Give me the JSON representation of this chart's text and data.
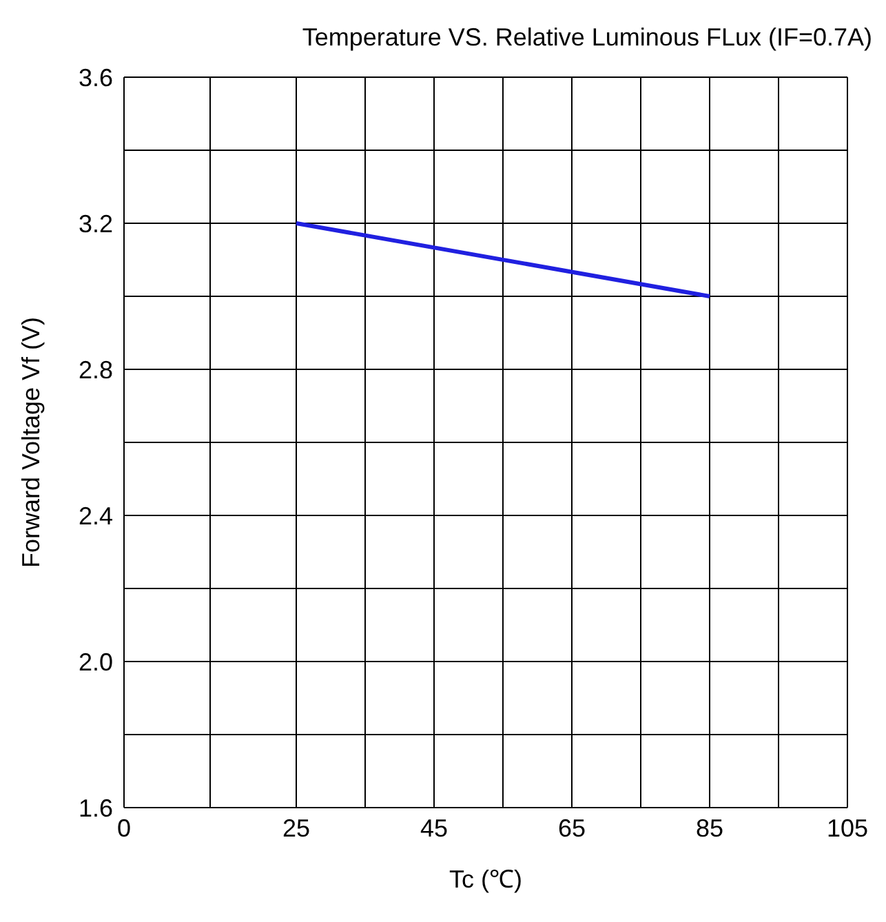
{
  "chart_data": {
    "type": "line",
    "title": "Temperature VS.  Relative Luminous FLux (IF=0.7A)",
    "xlabel": "Tc (℃)",
    "ylabel": "Forward  Voltage  Vf  (V)",
    "x": [
      25,
      85
    ],
    "series": [
      {
        "color": "#2020e0",
        "values": [
          3.2,
          3.0
        ]
      }
    ],
    "xlim": [
      0,
      105
    ],
    "xticks": [
      0,
      {
        "value": 12.5,
        "label": null
      },
      25,
      {
        "value": 35,
        "label": null
      },
      45,
      {
        "value": 55,
        "label": null
      },
      65,
      {
        "value": 75,
        "label": null
      },
      85,
      {
        "value": 95,
        "label": null
      },
      105
    ],
    "ylim": [
      1.6,
      3.6
    ],
    "yticks": [
      1.6,
      {
        "value": 1.8,
        "label": null
      },
      {
        "value": 2,
        "label": "2.0"
      },
      {
        "value": 2.2,
        "label": null
      },
      2.4,
      {
        "value": 2.6,
        "label": null
      },
      2.8,
      {
        "value": 3.0,
        "label": null
      },
      3.2,
      {
        "value": 3.4,
        "label": null
      },
      3.6
    ],
    "grid": true,
    "marker": "none",
    "line_style": "solid",
    "legend": false
  }
}
